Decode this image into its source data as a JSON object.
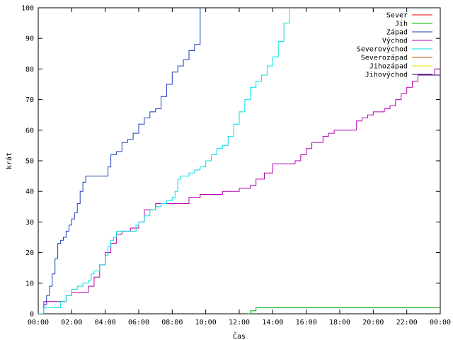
{
  "chart_data": {
    "type": "line",
    "title": "",
    "xlabel": "Čas",
    "ylabel": "krát",
    "xlim": [
      "00:00",
      "24:00"
    ],
    "ylim": [
      0,
      100
    ],
    "grid": false,
    "legend_position": "top-right",
    "x_ticks": [
      "00:00",
      "02:00",
      "04:00",
      "06:00",
      "08:00",
      "10:00",
      "12:00",
      "14:00",
      "16:00",
      "18:00",
      "20:00",
      "22:00",
      "00:00"
    ],
    "y_ticks": [
      "0",
      "10",
      "20",
      "30",
      "40",
      "50",
      "60",
      "70",
      "80",
      "90",
      "100"
    ],
    "series": [
      {
        "name": "Sever",
        "color": "#ff0000",
        "x": [],
        "y": []
      },
      {
        "name": "Jih",
        "color": "#00b000",
        "x": [
          "12:30",
          "12:40",
          "12:50",
          "13:00",
          "24:00"
        ],
        "y": [
          0,
          1,
          1,
          2,
          2
        ]
      },
      {
        "name": "Západ",
        "color": "#1f3fbf",
        "x": [
          "00:00",
          "00:20",
          "00:30",
          "00:40",
          "00:50",
          "01:00",
          "01:10",
          "01:20",
          "01:30",
          "01:40",
          "01:50",
          "02:00",
          "02:10",
          "02:20",
          "02:30",
          "02:40",
          "02:50",
          "03:00",
          "04:00",
          "04:10",
          "04:20",
          "04:40",
          "05:00",
          "05:20",
          "05:40",
          "06:00",
          "06:20",
          "06:40",
          "07:00",
          "07:20",
          "07:40",
          "08:00",
          "08:20",
          "08:40",
          "09:00",
          "09:20",
          "09:40"
        ],
        "y": [
          0,
          3,
          6,
          9,
          13,
          18,
          23,
          24,
          25,
          27,
          29,
          31,
          33,
          36,
          40,
          43,
          45,
          45,
          45,
          48,
          52,
          53,
          56,
          57,
          59,
          62,
          64,
          66,
          67,
          71,
          75,
          79,
          81,
          83,
          86,
          88,
          100
        ]
      },
      {
        "name": "Východ",
        "color": "#b000b0",
        "x": [
          "00:00",
          "00:20",
          "01:30",
          "01:40",
          "02:00",
          "03:00",
          "03:20",
          "03:40",
          "04:00",
          "04:20",
          "04:40",
          "05:00",
          "05:30",
          "06:00",
          "06:20",
          "07:00",
          "08:00",
          "09:00",
          "09:40",
          "10:00",
          "11:00",
          "12:00",
          "12:40",
          "13:00",
          "13:30",
          "14:00",
          "15:00",
          "15:20",
          "15:40",
          "16:00",
          "16:20",
          "17:00",
          "17:20",
          "17:40",
          "18:00",
          "19:00",
          "19:20",
          "19:40",
          "20:00",
          "20:40",
          "21:00",
          "21:20",
          "21:40",
          "22:00",
          "22:20",
          "22:40",
          "23:40",
          "24:00"
        ],
        "y": [
          0,
          4,
          4,
          6,
          7,
          9,
          12,
          16,
          20,
          23,
          26,
          27,
          28,
          30,
          34,
          36,
          36,
          38,
          39,
          39,
          40,
          41,
          42,
          44,
          46,
          49,
          49,
          50,
          52,
          54,
          56,
          58,
          59,
          60,
          60,
          63,
          64,
          65,
          66,
          67,
          68,
          70,
          72,
          74,
          76,
          78,
          80,
          86
        ]
      },
      {
        "name": "Severovýchod",
        "color": "#00e0e0",
        "x": [
          "00:00",
          "00:20",
          "01:00",
          "01:20",
          "01:40",
          "02:00",
          "02:20",
          "02:40",
          "03:00",
          "03:10",
          "03:20",
          "03:40",
          "04:00",
          "04:10",
          "04:20",
          "04:30",
          "04:40",
          "05:00",
          "05:30",
          "05:50",
          "06:00",
          "06:20",
          "06:40",
          "07:00",
          "07:20",
          "07:40",
          "08:00",
          "08:10",
          "08:20",
          "08:30",
          "08:40",
          "09:00",
          "09:20",
          "09:40",
          "10:00",
          "10:20",
          "10:40",
          "11:00",
          "11:20",
          "11:40",
          "12:00",
          "12:20",
          "12:40",
          "13:00",
          "13:20",
          "13:40",
          "14:00",
          "14:20",
          "14:40",
          "15:00"
        ],
        "y": [
          0,
          2,
          2,
          4,
          6,
          8,
          9,
          10,
          11,
          13,
          14,
          16,
          19,
          22,
          24,
          25,
          27,
          27,
          27,
          29,
          30,
          32,
          34,
          35,
          36,
          37,
          38,
          40,
          44,
          45,
          45,
          46,
          47,
          48,
          50,
          52,
          54,
          55,
          58,
          62,
          66,
          70,
          74,
          76,
          78,
          81,
          84,
          89,
          95,
          100
        ]
      },
      {
        "name": "Severozápad",
        "color": "#b06000",
        "x": [],
        "y": []
      },
      {
        "name": "Jihozápad",
        "color": "#e0e000",
        "x": [],
        "y": []
      },
      {
        "name": "Jihovýchod",
        "color": "#4b0082",
        "x": [
          "22:40",
          "24:00"
        ],
        "y": [
          78,
          78
        ]
      }
    ]
  }
}
